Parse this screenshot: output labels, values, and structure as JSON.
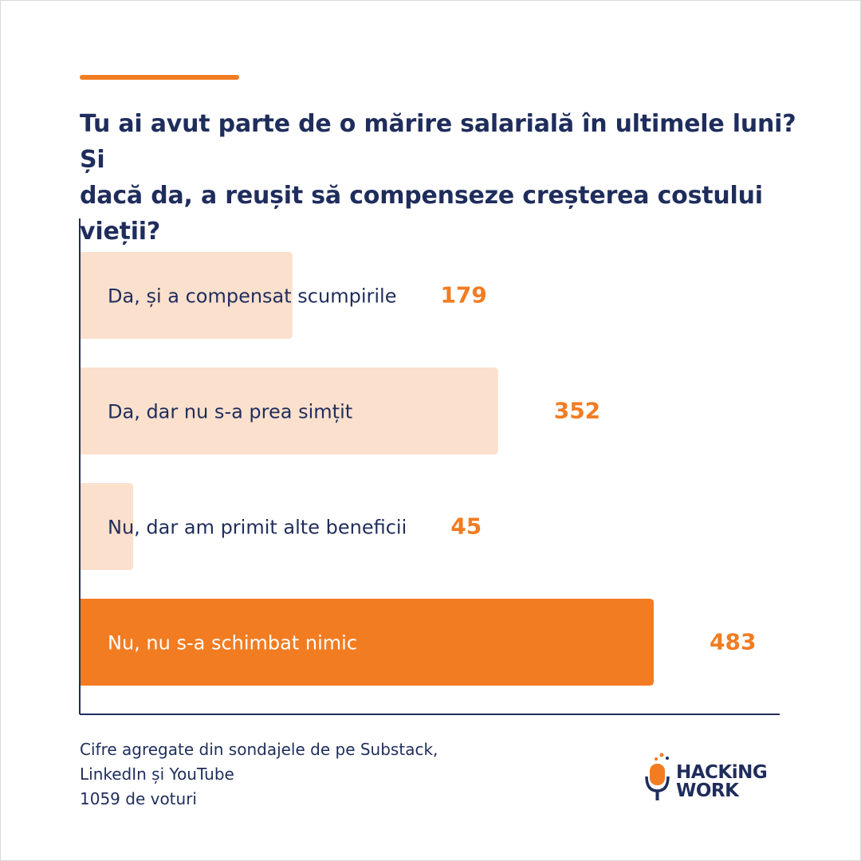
{
  "colors": {
    "accent": "#f27c22",
    "bar_light": "#fbe0cd",
    "bar_highlight": "#f27c22",
    "value_text": "#f27c22",
    "text_dark": "#1f2d5c"
  },
  "title_line1": "Tu ai avut parte de o mărire salarială în ultimele luni? Și",
  "title_line2": "dacă da, a reușit să compenseze creșterea costului vieții?",
  "chart_data": {
    "type": "bar",
    "orientation": "horizontal",
    "categories": [
      "Da, și a compensat scumpirile",
      "Da, dar nu s-a prea simțit",
      "Nu, dar am primit alte beneficii",
      "Nu, nu s-a schimbat nimic"
    ],
    "values": [
      179,
      352,
      45,
      483
    ],
    "highlighted_index": 3,
    "xlim": [
      0,
      483
    ],
    "grid": false,
    "legend": "none"
  },
  "footnote": {
    "line1": "Cifre agregate din sondajele de pe Substack,",
    "line2": "LinkedIn și YouTube",
    "line3": "1059 de voturi"
  },
  "logo": {
    "line1": "HACKiNG",
    "line2": "WORK",
    "icon": "microphone-icon"
  }
}
